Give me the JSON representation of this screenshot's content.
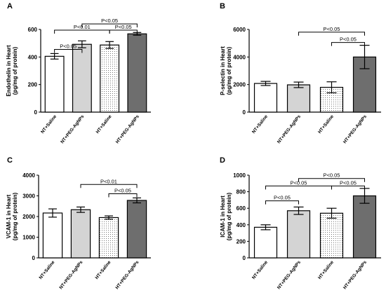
{
  "chart_data": [
    {
      "type": "bar",
      "panel": "A",
      "ylabel": [
        "Endothelin in Heart",
        "(pg/mg of protein)"
      ],
      "ylim": [
        0,
        600
      ],
      "yticks": [
        0,
        200,
        400,
        600
      ],
      "yticklabels": [
        "0",
        "200",
        "400",
        "600"
      ],
      "categories": [
        "NT+Saline",
        "NT+PEG-AgNPs",
        "HT+Saline",
        "HT+PEG-AgNPs"
      ],
      "values": [
        405,
        492,
        487,
        568
      ],
      "errors": [
        20,
        25,
        25,
        10
      ],
      "annotations": [
        {
          "from": 0,
          "to": 1,
          "level": 455,
          "label": "P<0.05"
        },
        {
          "from": 0,
          "to": 2,
          "level": 595,
          "label": "P<0.01"
        },
        {
          "from": 2,
          "to": 3,
          "level": 595,
          "label": "P<0.05"
        },
        {
          "from": 1,
          "to": 3,
          "level": 640,
          "label": "P<0.05"
        }
      ]
    },
    {
      "type": "bar",
      "panel": "B",
      "ylabel": [
        "P-selectin in Heart",
        "(pg/mg of protein)"
      ],
      "ylim": [
        0,
        6000
      ],
      "yticks": [
        0,
        2000,
        4000,
        6000
      ],
      "yticklabels": [
        "0",
        "2000",
        "4000",
        "6000"
      ],
      "categories": [
        "NT+Saline",
        "NT+PEG-AgNPs",
        "HT+Saline",
        "HT+PEG-AgNPs"
      ],
      "values": [
        2080,
        1980,
        1800,
        4000
      ],
      "errors": [
        150,
        200,
        400,
        850
      ],
      "annotations": [
        {
          "from": 1,
          "to": 3,
          "level": 5800,
          "label": "P<0.05"
        },
        {
          "from": 2,
          "to": 3,
          "level": 5050,
          "label": "P<0.05"
        }
      ]
    },
    {
      "type": "bar",
      "panel": "C",
      "ylabel": [
        "VCAM-1 in Heart",
        "(pg/mg of protein)"
      ],
      "ylim": [
        0,
        4000
      ],
      "yticks": [
        0,
        1000,
        2000,
        3000,
        4000
      ],
      "yticklabels": [
        "0",
        "1000",
        "2000",
        "3000",
        "4000"
      ],
      "categories": [
        "NT+Saline",
        "NT+PEG-AgNPs",
        "HT+Saline",
        "HT+PEG-AgNPs"
      ],
      "values": [
        2170,
        2330,
        1950,
        2780
      ],
      "errors": [
        200,
        130,
        80,
        120
      ],
      "annotations": [
        {
          "from": 1,
          "to": 3,
          "level": 3550,
          "label": "P<0.01"
        },
        {
          "from": 2,
          "to": 3,
          "level": 3100,
          "label": "P<0.05"
        }
      ]
    },
    {
      "type": "bar",
      "panel": "D",
      "ylabel": [
        "ICAM-1 in Heart",
        "(pg/mg of protein)"
      ],
      "ylim": [
        0,
        1000
      ],
      "yticks": [
        0,
        200,
        400,
        600,
        800,
        1000
      ],
      "yticklabels": [
        "0",
        "200",
        "400",
        "600",
        "800",
        "1000"
      ],
      "categories": [
        "NT+Saline",
        "NT+PEG-AgNPs",
        "HT+Saline",
        "HT+PEG-AgNPs"
      ],
      "values": [
        370,
        570,
        540,
        750
      ],
      "errors": [
        30,
        45,
        60,
        90
      ],
      "annotations": [
        {
          "from": 0,
          "to": 1,
          "level": 690,
          "label": "P<0.05"
        },
        {
          "from": 0,
          "to": 2,
          "level": 870,
          "label": "P<0.05"
        },
        {
          "from": 2,
          "to": 3,
          "level": 870,
          "label": "P<0.05"
        },
        {
          "from": 1,
          "to": 3,
          "level": 960,
          "label": "P<0.05"
        }
      ]
    }
  ]
}
